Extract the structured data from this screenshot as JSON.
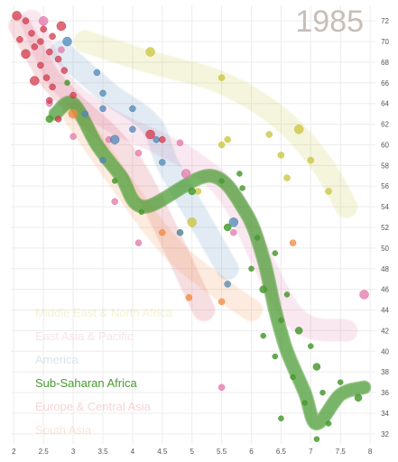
{
  "chart_data": {
    "type": "scatter",
    "title": "",
    "xlabel": "",
    "ylabel": "",
    "year_label": "1985",
    "xlim": [
      1.95,
      8.15
    ],
    "ylim": [
      30.5,
      73.5
    ],
    "x_ticks": [
      "2",
      "2.5",
      "3",
      "3.5",
      "4",
      "4.5",
      "5",
      "5.5",
      "6",
      "6.5",
      "7",
      "7.5",
      "8"
    ],
    "y_ticks": [
      "32",
      "34",
      "36",
      "38",
      "40",
      "42",
      "44",
      "46",
      "48",
      "50",
      "52",
      "54",
      "56",
      "58",
      "60",
      "62",
      "64",
      "66",
      "68",
      "70",
      "72"
    ],
    "grid": true,
    "legend_position": "bottom-left",
    "series": [
      {
        "name": "Middle East & North Africa",
        "color": "#c9c43a",
        "highlighted": false,
        "trail": [
          [
            3.2,
            70
          ],
          [
            4.3,
            68
          ],
          [
            5.5,
            66
          ],
          [
            6.5,
            62.5
          ],
          [
            7.2,
            58
          ],
          [
            7.6,
            54
          ]
        ],
        "points": [
          [
            4.3,
            69
          ],
          [
            5.5,
            66.5
          ],
          [
            5.6,
            60.5
          ],
          [
            6.3,
            61
          ],
          [
            6.5,
            59
          ],
          [
            6.8,
            61.5
          ],
          [
            7.0,
            58.5
          ],
          [
            6.6,
            56.8
          ],
          [
            7.3,
            55.5
          ],
          [
            5.1,
            55.5
          ],
          [
            5.0,
            52.5
          ],
          [
            4.8,
            51.5
          ],
          [
            5.5,
            60
          ]
        ]
      },
      {
        "name": "East Asia & Pacific",
        "color": "#e377a8",
        "highlighted": false,
        "trail": [
          [
            2.3,
            72
          ],
          [
            2.8,
            66
          ],
          [
            3.6,
            62.5
          ],
          [
            4.5,
            60
          ],
          [
            5.1,
            58
          ],
          [
            5.7,
            54.5
          ],
          [
            6.7,
            43.5
          ],
          [
            7.6,
            42
          ]
        ],
        "points": [
          [
            2.5,
            72
          ],
          [
            2.8,
            69.2
          ],
          [
            3.0,
            60.8
          ],
          [
            3.6,
            60.5
          ],
          [
            4.1,
            59.2
          ],
          [
            4.9,
            57.2
          ],
          [
            4.8,
            60.2
          ],
          [
            3.7,
            54.5
          ],
          [
            4.1,
            50.5
          ],
          [
            5.7,
            51.5
          ],
          [
            7.9,
            45.5
          ],
          [
            5.5,
            36.5
          ],
          [
            2.6,
            64
          ]
        ]
      },
      {
        "name": "America",
        "color": "#4f87b6",
        "highlighted": false,
        "trail": [
          [
            2.8,
            69
          ],
          [
            3.6,
            65
          ],
          [
            4.3,
            62
          ],
          [
            4.6,
            58
          ],
          [
            5.1,
            53
          ],
          [
            5.6,
            48
          ]
        ],
        "points": [
          [
            2.9,
            70
          ],
          [
            3.4,
            67
          ],
          [
            3.5,
            65
          ],
          [
            3.5,
            63.5
          ],
          [
            4.0,
            63.5
          ],
          [
            3.7,
            60.5
          ],
          [
            4.0,
            61.5
          ],
          [
            4.4,
            60.5
          ],
          [
            3.5,
            58.5
          ],
          [
            4.5,
            58.3
          ],
          [
            5.7,
            52.5
          ],
          [
            5.6,
            46.5
          ],
          [
            4.8,
            51.5
          ],
          [
            3.2,
            63
          ]
        ]
      },
      {
        "name": "Sub-Saharan Africa",
        "color": "#4a9a33",
        "highlighted": true,
        "trail": [
          [
            2.7,
            63
          ],
          [
            3.0,
            64
          ],
          [
            3.4,
            60
          ],
          [
            3.8,
            57
          ],
          [
            4.2,
            54
          ],
          [
            5.3,
            57
          ],
          [
            5.9,
            53.5
          ],
          [
            6.2,
            49
          ],
          [
            6.4,
            44
          ],
          [
            6.6,
            40
          ],
          [
            6.9,
            36
          ],
          [
            7.1,
            33
          ],
          [
            7.5,
            35.8
          ],
          [
            7.9,
            36.5
          ]
        ],
        "points": [
          [
            2.6,
            62.5
          ],
          [
            2.9,
            66
          ],
          [
            3.7,
            56.5
          ],
          [
            4.15,
            53.5
          ],
          [
            5.0,
            55.5
          ],
          [
            5.5,
            56.5
          ],
          [
            5.8,
            57.2
          ],
          [
            5.85,
            55.8
          ],
          [
            5.6,
            52
          ],
          [
            6.1,
            51
          ],
          [
            6.0,
            48
          ],
          [
            6.4,
            49.5
          ],
          [
            6.2,
            46
          ],
          [
            6.6,
            45.5
          ],
          [
            6.5,
            43
          ],
          [
            6.2,
            41.5
          ],
          [
            6.8,
            42
          ],
          [
            7.0,
            40.5
          ],
          [
            6.4,
            39.5
          ],
          [
            6.7,
            37.5
          ],
          [
            7.1,
            38.5
          ],
          [
            7.2,
            36
          ],
          [
            6.9,
            35
          ],
          [
            7.5,
            37
          ],
          [
            7.8,
            35.5
          ],
          [
            6.5,
            33.5
          ],
          [
            7.1,
            31.5
          ],
          [
            7.3,
            33
          ]
        ]
      },
      {
        "name": "Europe & Central Asia",
        "color": "#d23a4c",
        "highlighted": false,
        "trail": [
          [
            2.1,
            71.5
          ],
          [
            2.4,
            68.5
          ],
          [
            2.6,
            66.5
          ],
          [
            3.0,
            64
          ],
          [
            4.0,
            58
          ],
          [
            5.2,
            44
          ]
        ],
        "points": [
          [
            2.05,
            72.5
          ],
          [
            2.2,
            72
          ],
          [
            2.3,
            70.8
          ],
          [
            2.5,
            71.2
          ],
          [
            2.65,
            70.5
          ],
          [
            2.8,
            71.5
          ],
          [
            2.1,
            70.2
          ],
          [
            2.45,
            70
          ],
          [
            2.6,
            69
          ],
          [
            2.35,
            69.5
          ],
          [
            2.2,
            68.8
          ],
          [
            2.75,
            68.3
          ],
          [
            2.45,
            67.7
          ],
          [
            2.85,
            67.2
          ],
          [
            2.55,
            66.5
          ],
          [
            2.35,
            66.2
          ],
          [
            2.65,
            65.6
          ],
          [
            2.6,
            64.3
          ],
          [
            3.0,
            64.8
          ],
          [
            2.75,
            62.5
          ],
          [
            4.3,
            61
          ],
          [
            4.5,
            60.5
          ]
        ]
      },
      {
        "name": "South Asia",
        "color": "#f08a3e",
        "highlighted": false,
        "trail": [
          [
            3.0,
            63
          ],
          [
            4.5,
            51
          ],
          [
            5.5,
            46
          ],
          [
            6.0,
            44
          ]
        ],
        "points": [
          [
            3.0,
            63
          ],
          [
            4.5,
            51.5
          ],
          [
            4.95,
            45.2
          ],
          [
            5.5,
            44.8
          ],
          [
            6.7,
            50.5
          ]
        ]
      }
    ]
  }
}
